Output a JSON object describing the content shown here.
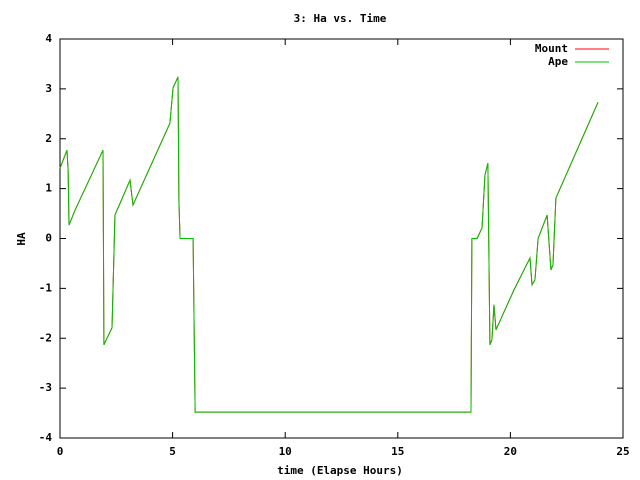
{
  "chart_data": {
    "type": "line",
    "title": "3: Ha vs. Time",
    "x_label": "time (Elapse Hours)",
    "y_label": "HA",
    "xlim": [
      0,
      25
    ],
    "xticks": [
      0,
      5,
      10,
      15,
      20,
      25
    ],
    "ylim": [
      -4,
      4
    ],
    "yticks": [
      -4,
      -3,
      -2,
      -1,
      0,
      1,
      2,
      3,
      4
    ],
    "legend_position": "top-right",
    "x": [
      0,
      0.31,
      0.36,
      0.4,
      0.67,
      1.91,
      1.95,
      2.31,
      2.44,
      3.11,
      3.24,
      4.88,
      5.02,
      5.24,
      5.28,
      5.33,
      5.91,
      6.0,
      18.25,
      18.29,
      18.52,
      18.74,
      18.87,
      19.0,
      19.09,
      19.18,
      19.27,
      19.36,
      20.16,
      20.87,
      20.96,
      21.09,
      21.23,
      21.63,
      21.8,
      21.89,
      22.02,
      23.89
    ],
    "series": [
      {
        "name": "Mount",
        "color": "#ff0000",
        "values": [
          1.41,
          1.77,
          1.37,
          0.27,
          0.57,
          1.77,
          -2.13,
          -1.79,
          0.47,
          1.17,
          0.67,
          2.31,
          3.02,
          3.24,
          0.77,
          0,
          0,
          -3.48,
          -3.48,
          0,
          0,
          0.21,
          1.27,
          1.51,
          -2.13,
          -2.03,
          -1.33,
          -1.83,
          -1.03,
          -0.39,
          -0.93,
          -0.83,
          0,
          0.47,
          -0.63,
          -0.53,
          0.81,
          2.73
        ]
      },
      {
        "name": "Ape",
        "color": "#00c000",
        "values": [
          1.41,
          1.77,
          1.37,
          0.27,
          0.57,
          1.77,
          -2.13,
          -1.79,
          0.47,
          1.17,
          0.67,
          2.31,
          3.02,
          3.24,
          0.77,
          0,
          0,
          -3.48,
          -3.48,
          0,
          0,
          0.21,
          1.27,
          1.51,
          -2.13,
          -2.03,
          -1.33,
          -1.83,
          -1.03,
          -0.39,
          -0.93,
          -0.83,
          0,
          0.47,
          -0.63,
          -0.53,
          0.81,
          2.73
        ]
      }
    ]
  }
}
